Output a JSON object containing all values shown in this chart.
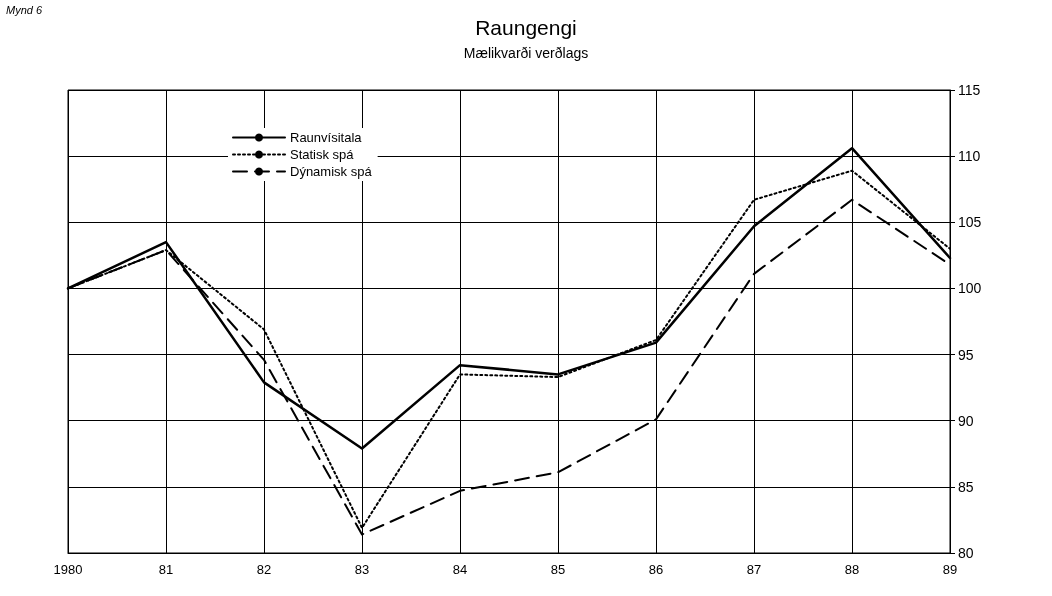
{
  "chart_data": {
    "type": "line",
    "title": "Raungengi",
    "subtitle": "Mælikvarði verðlags",
    "annotations": [
      "Mynd 6"
    ],
    "categories": [
      "1980",
      "81",
      "82",
      "83",
      "84",
      "85",
      "86",
      "87",
      "88",
      "89"
    ],
    "series": [
      {
        "name": "Raunvísitala",
        "color": "#000000",
        "line_style": "solid",
        "values": [
          100,
          103.5,
          92.9,
          87.9,
          94.2,
          93.5,
          95.9,
          104.7,
          110.6,
          102.3
        ]
      },
      {
        "name": "Statisk spá",
        "color": "#000000",
        "line_style": "dotted",
        "values": [
          100,
          102.9,
          96.9,
          81.9,
          93.5,
          93.3,
          96.1,
          106.7,
          108.9,
          103.0
        ]
      },
      {
        "name": "Dýnamisk spá",
        "color": "#000000",
        "line_style": "dashed",
        "values": [
          100,
          102.9,
          94.6,
          81.4,
          84.7,
          86.1,
          90.1,
          101.1,
          106.7,
          101.8
        ]
      }
    ],
    "ylim": [
      80,
      115
    ],
    "yticks": [
      80,
      85,
      90,
      95,
      100,
      105,
      110,
      115
    ],
    "grid": true,
    "legend": "top left",
    "marker": "none"
  }
}
